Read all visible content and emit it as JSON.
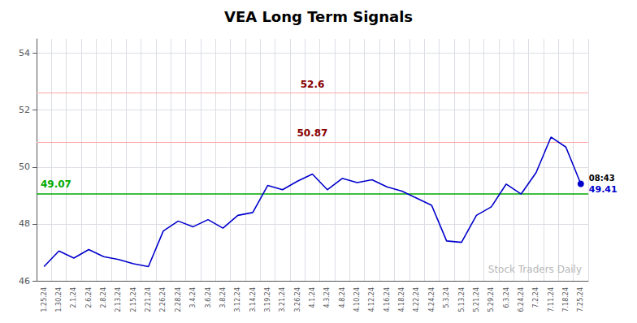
{
  "chart_data": {
    "type": "line",
    "title": "VEA Long Term Signals",
    "categories": [
      "1.25.24",
      "1.30.24",
      "2.1.24",
      "2.6.24",
      "2.8.24",
      "2.13.24",
      "2.15.24",
      "2.21.24",
      "2.26.24",
      "2.28.24",
      "3.4.24",
      "3.6.24",
      "3.8.24",
      "3.12.24",
      "3.14.24",
      "3.19.24",
      "3.21.24",
      "3.26.24",
      "4.1.24",
      "4.3.24",
      "4.8.24",
      "4.10.24",
      "4.12.24",
      "4.16.24",
      "4.18.24",
      "4.22.24",
      "4.24.24",
      "5.3.24",
      "5.13.24",
      "5.21.24",
      "5.29.24",
      "6.3.24",
      "6.24.24",
      "7.2.24",
      "7.11.24",
      "7.18.24",
      "7.25.24"
    ],
    "values": [
      46.5,
      47.05,
      46.8,
      47.1,
      46.85,
      46.75,
      46.6,
      46.5,
      47.75,
      48.1,
      47.9,
      48.15,
      47.85,
      48.3,
      48.4,
      49.35,
      49.2,
      49.5,
      49.75,
      49.2,
      49.6,
      49.45,
      49.55,
      49.3,
      49.15,
      48.9,
      48.65,
      47.4,
      47.35,
      48.3,
      48.6,
      49.4,
      49.05,
      49.8,
      51.05,
      50.7,
      49.41
    ],
    "color": "#0000cc",
    "ylim": [
      46,
      54.5
    ],
    "yticks": [
      46,
      48,
      50,
      52,
      54
    ],
    "grid": true,
    "hlines": [
      {
        "value": 49.07,
        "color": "#00aa00",
        "label": "49.07",
        "label_color": "#00aa00"
      },
      {
        "value": 50.87,
        "color": "#ffaaaa",
        "label": "50.87",
        "label_color": "#880000"
      },
      {
        "value": 52.6,
        "color": "#ffaaaa",
        "label": "52.6",
        "label_color": "#880000"
      }
    ],
    "last_point_labels": {
      "time": "08:43",
      "value": "49.41"
    },
    "watermark": "Stock Traders Daily"
  }
}
